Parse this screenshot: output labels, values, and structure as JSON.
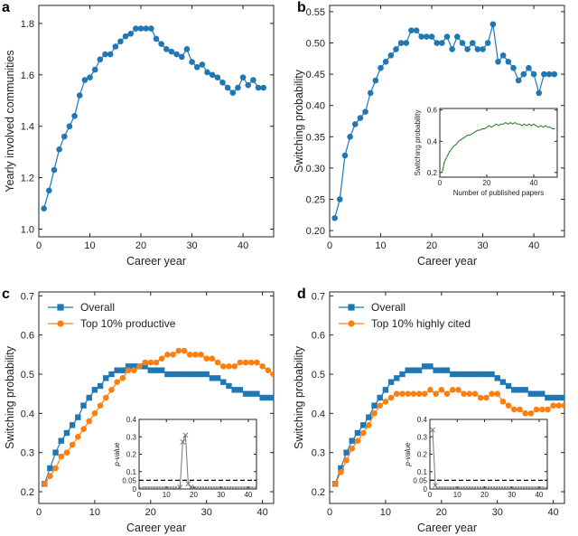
{
  "colors": {
    "blue": "#1f77b4",
    "orange": "#ff7f0e",
    "green": "#1a7a1a",
    "axis": "#222222",
    "gray": "#777777"
  },
  "chart_data": [
    {
      "panel": "a",
      "type": "line",
      "xlabel": "Career year",
      "ylabel": "Yearly involved communities",
      "xlim": [
        0,
        46
      ],
      "ylim": [
        0.97,
        1.87
      ],
      "xticks": [
        0,
        10,
        20,
        30,
        40
      ],
      "yticks": [
        1.0,
        1.2,
        1.4,
        1.6,
        1.8
      ],
      "ytick_labels": [
        "1.0",
        "1.2",
        "1.4",
        "1.6",
        "1.8"
      ],
      "series": [
        {
          "marker": "circle",
          "color": "#1f77b4",
          "x": [
            1,
            2,
            3,
            4,
            5,
            6,
            7,
            8,
            9,
            10,
            11,
            12,
            13,
            14,
            15,
            16,
            17,
            18,
            19,
            20,
            21,
            22,
            23,
            24,
            25,
            26,
            27,
            28,
            29,
            30,
            31,
            32,
            33,
            34,
            35,
            36,
            37,
            38,
            39,
            40,
            41,
            42,
            43,
            44
          ],
          "y": [
            1.08,
            1.15,
            1.23,
            1.31,
            1.36,
            1.4,
            1.44,
            1.52,
            1.58,
            1.59,
            1.62,
            1.66,
            1.68,
            1.68,
            1.71,
            1.73,
            1.75,
            1.76,
            1.78,
            1.78,
            1.78,
            1.78,
            1.74,
            1.72,
            1.7,
            1.69,
            1.68,
            1.67,
            1.7,
            1.65,
            1.63,
            1.64,
            1.61,
            1.6,
            1.59,
            1.57,
            1.55,
            1.53,
            1.55,
            1.59,
            1.56,
            1.58,
            1.55,
            1.55
          ]
        }
      ]
    },
    {
      "panel": "b",
      "type": "line",
      "xlabel": "Career year",
      "ylabel": "Switching probability",
      "xlim": [
        0,
        46
      ],
      "ylim": [
        0.19,
        0.56
      ],
      "xticks": [
        0,
        10,
        20,
        30,
        40
      ],
      "yticks": [
        0.2,
        0.25,
        0.3,
        0.35,
        0.4,
        0.45,
        0.5,
        0.55
      ],
      "ytick_labels": [
        "0.20",
        "0.25",
        "0.30",
        "0.35",
        "0.40",
        "0.45",
        "0.50",
        "0.55"
      ],
      "series": [
        {
          "marker": "circle",
          "color": "#1f77b4",
          "x": [
            1,
            2,
            3,
            4,
            5,
            6,
            7,
            8,
            9,
            10,
            11,
            12,
            13,
            14,
            15,
            16,
            17,
            18,
            19,
            20,
            21,
            22,
            23,
            24,
            25,
            26,
            27,
            28,
            29,
            30,
            31,
            32,
            33,
            34,
            35,
            36,
            37,
            38,
            39,
            40,
            41,
            42,
            43,
            44
          ],
          "y": [
            0.22,
            0.25,
            0.32,
            0.35,
            0.37,
            0.38,
            0.39,
            0.42,
            0.44,
            0.46,
            0.47,
            0.48,
            0.49,
            0.5,
            0.5,
            0.52,
            0.52,
            0.51,
            0.51,
            0.51,
            0.5,
            0.5,
            0.51,
            0.49,
            0.51,
            0.5,
            0.49,
            0.5,
            0.49,
            0.49,
            0.5,
            0.53,
            0.47,
            0.48,
            0.47,
            0.46,
            0.44,
            0.45,
            0.46,
            0.45,
            0.42,
            0.45,
            0.45,
            0.45
          ]
        }
      ],
      "inset": {
        "type": "line",
        "xlabel": "Number of published papers",
        "ylabel": "Switching probability",
        "xlim": [
          0,
          50
        ],
        "ylim": [
          0.17,
          0.61
        ],
        "xticks": [
          0,
          20,
          40
        ],
        "yticks": [
          0.2,
          0.4,
          0.6
        ],
        "ytick_labels": [
          "0.2",
          "0.4",
          "0.6"
        ],
        "series": [
          {
            "color": "#1a7a1a",
            "x": [
              1,
              2,
              3,
              4,
              5,
              6,
              7,
              8,
              9,
              10,
              11,
              12,
              13,
              14,
              15,
              16,
              17,
              18,
              19,
              20,
              21,
              22,
              23,
              24,
              25,
              26,
              27,
              28,
              29,
              30,
              31,
              32,
              33,
              34,
              35,
              36,
              37,
              38,
              39,
              40,
              41,
              42,
              43,
              44,
              45,
              46,
              47,
              48,
              49
            ],
            "y": [
              0.2,
              0.27,
              0.3,
              0.33,
              0.35,
              0.37,
              0.38,
              0.4,
              0.41,
              0.42,
              0.43,
              0.44,
              0.44,
              0.45,
              0.46,
              0.47,
              0.47,
              0.48,
              0.48,
              0.49,
              0.5,
              0.49,
              0.5,
              0.51,
              0.5,
              0.51,
              0.51,
              0.52,
              0.51,
              0.52,
              0.51,
              0.52,
              0.51,
              0.51,
              0.5,
              0.51,
              0.5,
              0.51,
              0.5,
              0.51,
              0.5,
              0.49,
              0.5,
              0.49,
              0.5,
              0.49,
              0.49,
              0.48,
              0.48
            ]
          }
        ]
      }
    },
    {
      "panel": "c",
      "type": "line",
      "xlabel": "Career year",
      "ylabel": "Switching probability",
      "xlim": [
        0,
        42
      ],
      "ylim": [
        0.17,
        0.71
      ],
      "xticks": [
        0,
        10,
        20,
        30,
        40
      ],
      "yticks": [
        0.2,
        0.3,
        0.4,
        0.5,
        0.6,
        0.7
      ],
      "ytick_labels": [
        "0.2",
        "0.3",
        "0.4",
        "0.5",
        "0.6",
        "0.7"
      ],
      "legend": [
        "Overall",
        "Top 10% productive"
      ],
      "series": [
        {
          "name": "Overall",
          "marker": "square",
          "color": "#1f77b4",
          "x": [
            1,
            2,
            3,
            4,
            5,
            6,
            7,
            8,
            9,
            10,
            11,
            12,
            13,
            14,
            15,
            16,
            17,
            18,
            19,
            20,
            21,
            22,
            23,
            24,
            25,
            26,
            27,
            28,
            29,
            30,
            31,
            32,
            33,
            34,
            35,
            36,
            37,
            38,
            39,
            40,
            41,
            42
          ],
          "y": [
            0.22,
            0.26,
            0.3,
            0.33,
            0.35,
            0.37,
            0.39,
            0.42,
            0.44,
            0.46,
            0.47,
            0.49,
            0.5,
            0.51,
            0.51,
            0.52,
            0.52,
            0.52,
            0.52,
            0.51,
            0.51,
            0.51,
            0.5,
            0.5,
            0.5,
            0.5,
            0.5,
            0.5,
            0.5,
            0.5,
            0.49,
            0.49,
            0.48,
            0.47,
            0.46,
            0.46,
            0.45,
            0.45,
            0.45,
            0.44,
            0.44,
            0.44
          ]
        },
        {
          "name": "Top 10% productive",
          "marker": "circle",
          "color": "#ff7f0e",
          "x": [
            1,
            2,
            3,
            4,
            5,
            6,
            7,
            8,
            9,
            10,
            11,
            12,
            13,
            14,
            15,
            16,
            17,
            18,
            19,
            20,
            21,
            22,
            23,
            24,
            25,
            26,
            27,
            28,
            29,
            30,
            31,
            32,
            33,
            34,
            35,
            36,
            37,
            38,
            39,
            40,
            41,
            42
          ],
          "y": [
            0.22,
            0.24,
            0.26,
            0.29,
            0.3,
            0.32,
            0.34,
            0.36,
            0.38,
            0.4,
            0.42,
            0.44,
            0.46,
            0.48,
            0.49,
            0.51,
            0.51,
            0.52,
            0.53,
            0.53,
            0.53,
            0.54,
            0.55,
            0.55,
            0.56,
            0.56,
            0.55,
            0.55,
            0.55,
            0.54,
            0.54,
            0.53,
            0.52,
            0.52,
            0.52,
            0.53,
            0.53,
            0.53,
            0.53,
            0.52,
            0.51,
            0.5
          ]
        }
      ],
      "inset": {
        "type": "line",
        "ylabel": "p-value",
        "xlim": [
          0,
          43
        ],
        "ylim": [
          0,
          0.4
        ],
        "xticks": [
          0,
          10,
          20,
          30,
          40
        ],
        "yticks": [
          0,
          0.05,
          0.1,
          0.2,
          0.3,
          0.4
        ],
        "ytick_labels": [
          "0",
          "0.05",
          "0.1",
          "0.2",
          "0.3",
          "0.4"
        ],
        "threshold": 0.05,
        "series": [
          {
            "marker": "x",
            "color": "#777777",
            "x": [
              1,
              2,
              3,
              4,
              5,
              6,
              7,
              8,
              9,
              10,
              11,
              12,
              13,
              14,
              15,
              16,
              17,
              18,
              19,
              20,
              21,
              22,
              23,
              24,
              25,
              26,
              27,
              28,
              29,
              30,
              31,
              32,
              33,
              34,
              35,
              36,
              37,
              38,
              39,
              40,
              41,
              42
            ],
            "y": [
              0,
              0,
              0,
              0,
              0,
              0,
              0,
              0,
              0,
              0,
              0,
              0,
              0,
              0,
              0.01,
              0.27,
              0.31,
              0.03,
              0.01,
              0,
              0,
              0,
              0,
              0,
              0,
              0,
              0,
              0,
              0,
              0,
              0,
              0,
              0,
              0,
              0,
              0,
              0,
              0,
              0,
              0,
              0,
              0
            ]
          }
        ]
      }
    },
    {
      "panel": "d",
      "type": "line",
      "xlabel": "Career year",
      "ylabel": "Switching probability",
      "xlim": [
        0,
        42
      ],
      "ylim": [
        0.17,
        0.71
      ],
      "xticks": [
        0,
        10,
        20,
        30,
        40
      ],
      "yticks": [
        0.2,
        0.3,
        0.4,
        0.5,
        0.6,
        0.7
      ],
      "ytick_labels": [
        "0.2",
        "0.3",
        "0.4",
        "0.5",
        "0.6",
        "0.7"
      ],
      "legend": [
        "Overall",
        "Top 10% highly cited"
      ],
      "series": [
        {
          "name": "Overall",
          "marker": "square",
          "color": "#1f77b4",
          "x": [
            1,
            2,
            3,
            4,
            5,
            6,
            7,
            8,
            9,
            10,
            11,
            12,
            13,
            14,
            15,
            16,
            17,
            18,
            19,
            20,
            21,
            22,
            23,
            24,
            25,
            26,
            27,
            28,
            29,
            30,
            31,
            32,
            33,
            34,
            35,
            36,
            37,
            38,
            39,
            40,
            41,
            42
          ],
          "y": [
            0.22,
            0.26,
            0.3,
            0.33,
            0.35,
            0.37,
            0.39,
            0.42,
            0.44,
            0.46,
            0.48,
            0.49,
            0.5,
            0.51,
            0.51,
            0.51,
            0.52,
            0.52,
            0.51,
            0.51,
            0.51,
            0.5,
            0.5,
            0.5,
            0.5,
            0.5,
            0.5,
            0.5,
            0.5,
            0.49,
            0.48,
            0.47,
            0.46,
            0.46,
            0.46,
            0.45,
            0.45,
            0.45,
            0.44,
            0.44,
            0.44,
            0.44
          ]
        },
        {
          "name": "Top 10% highly cited",
          "marker": "circle",
          "color": "#ff7f0e",
          "x": [
            1,
            2,
            3,
            4,
            5,
            6,
            7,
            8,
            9,
            10,
            11,
            12,
            13,
            14,
            15,
            16,
            17,
            18,
            19,
            20,
            21,
            22,
            23,
            24,
            25,
            26,
            27,
            28,
            29,
            30,
            31,
            32,
            33,
            34,
            35,
            36,
            37,
            38,
            39,
            40,
            41,
            42
          ],
          "y": [
            0.22,
            0.25,
            0.28,
            0.31,
            0.33,
            0.35,
            0.37,
            0.4,
            0.42,
            0.43,
            0.44,
            0.45,
            0.45,
            0.45,
            0.45,
            0.45,
            0.45,
            0.46,
            0.45,
            0.46,
            0.45,
            0.46,
            0.46,
            0.45,
            0.45,
            0.45,
            0.44,
            0.44,
            0.45,
            0.45,
            0.43,
            0.42,
            0.41,
            0.41,
            0.4,
            0.4,
            0.41,
            0.41,
            0.41,
            0.42,
            0.42,
            0.42
          ]
        }
      ],
      "inset": {
        "type": "line",
        "ylabel": "p-value",
        "xlim": [
          0,
          43
        ],
        "ylim": [
          0,
          0.4
        ],
        "xticks": [
          0,
          10,
          20,
          30,
          40
        ],
        "yticks": [
          0,
          0.05,
          0.1,
          0.2,
          0.3,
          0.4
        ],
        "ytick_labels": [
          "0",
          "0.05",
          "0.1",
          "0.2",
          "0.3",
          "0.4"
        ],
        "threshold": 0.05,
        "series": [
          {
            "marker": "x",
            "color": "#777777",
            "x": [
              1,
              2,
              3,
              4,
              5,
              6,
              7,
              8,
              9,
              10,
              11,
              12,
              13,
              14,
              15,
              16,
              17,
              18,
              19,
              20,
              21,
              22,
              23,
              24,
              25,
              26,
              27,
              28,
              29,
              30,
              31,
              32,
              33,
              34,
              35,
              36,
              37,
              38,
              39,
              40,
              41,
              42
            ],
            "y": [
              0.34,
              0.02,
              0,
              0,
              0,
              0,
              0,
              0,
              0,
              0,
              0,
              0,
              0,
              0,
              0,
              0,
              0,
              0,
              0,
              0,
              0,
              0,
              0,
              0,
              0,
              0,
              0,
              0,
              0,
              0,
              0,
              0,
              0,
              0,
              0,
              0,
              0,
              0,
              0,
              0,
              0,
              0
            ]
          }
        ]
      }
    }
  ]
}
